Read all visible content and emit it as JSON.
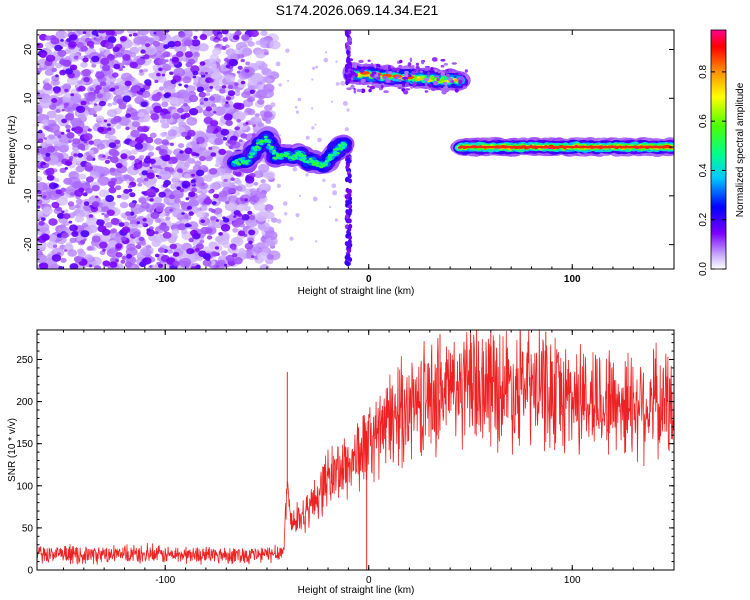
{
  "title": "S174.2026.069.14.34.E21",
  "chart_data": [
    {
      "type": "heatmap",
      "xlabel": "Height of straight line (km)",
      "ylabel": "Frequency (Hz)",
      "xlim": [
        -163,
        150
      ],
      "ylim": [
        -25,
        24
      ],
      "xticks": [
        -100,
        0,
        100
      ],
      "yticks": [
        -20,
        -10,
        0,
        10,
        20
      ],
      "colorbar": {
        "label": "Normalized spectral amplitude",
        "range": [
          0,
          0.97
        ],
        "ticks": [
          "0.0",
          "0.2",
          "0.4",
          "0.6",
          "0.8"
        ]
      },
      "features": [
        {
          "name": "noise field",
          "x_range": [
            -163,
            -52
          ],
          "f_range": [
            -25,
            24
          ],
          "amplitude": 0.12
        },
        {
          "name": "wavy track",
          "points": [
            [
              -66,
              -3
            ],
            [
              -60,
              -3
            ],
            [
              -55,
              0
            ],
            [
              -50,
              2
            ],
            [
              -46,
              -2
            ],
            [
              -42,
              -1.5
            ],
            [
              -38,
              -2
            ],
            [
              -34,
              -1.5
            ],
            [
              -30,
              -3
            ],
            [
              -26,
              -3
            ],
            [
              -22,
              -4
            ],
            [
              -18,
              -1.5
            ],
            [
              -14,
              0
            ],
            [
              -12,
              0.7
            ]
          ],
          "amplitude": 0.5
        },
        {
          "name": "upper band",
          "x_range": [
            -8,
            45
          ],
          "f_start": 15,
          "f_end": 13.5,
          "amplitude": 0.7
        },
        {
          "name": "zero line",
          "x_range": [
            45,
            149
          ],
          "f": 0,
          "amplitude": 0.9
        }
      ]
    },
    {
      "type": "line",
      "xlabel": "Height of straight line (km)",
      "ylabel": "SNR (10 * v/v)",
      "xlim": [
        -163,
        150
      ],
      "ylim": [
        0,
        285
      ],
      "xticks": [
        -100,
        0,
        100
      ],
      "yticks": [
        0,
        50,
        100,
        150,
        200,
        250
      ],
      "series": [
        {
          "name": "SNR",
          "color": "#ee2222",
          "x": [
            -163,
            -120,
            -80,
            -50,
            -42,
            -40,
            -38,
            -30,
            -20,
            -10,
            0,
            10,
            20,
            30,
            40,
            60,
            80,
            100,
            120,
            150
          ],
          "y": [
            18,
            18,
            18,
            18,
            22,
            100,
            55,
            70,
            110,
            125,
            150,
            175,
            195,
            205,
            215,
            220,
            215,
            205,
            200,
            195
          ],
          "spikes": [
            [
              -40,
              235
            ],
            [
              -1,
              0
            ],
            [
              35,
              280
            ],
            [
              60,
              282
            ],
            [
              87,
              283
            ],
            [
              140,
              260
            ]
          ]
        }
      ]
    }
  ]
}
